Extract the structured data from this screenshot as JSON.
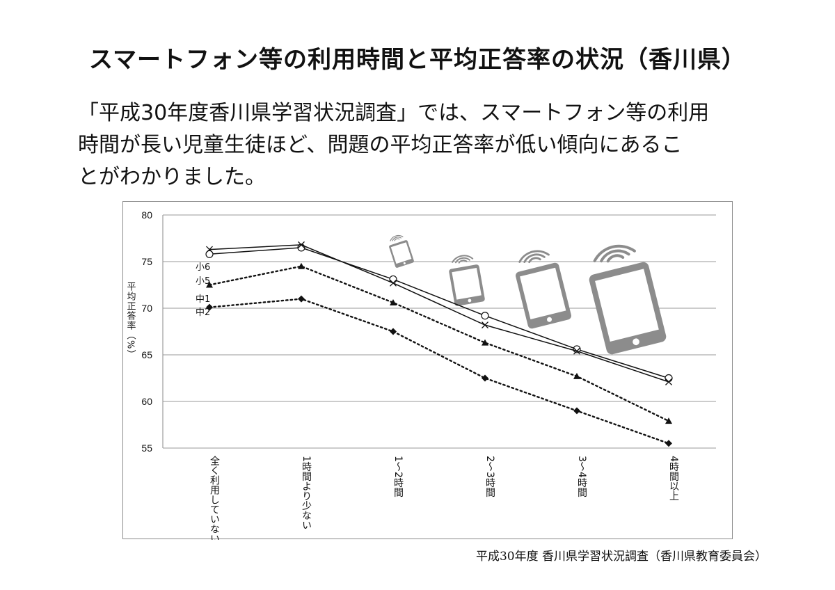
{
  "page": {
    "title": "スマートフォン等の利用時間と平均正答率の状況（香川県）",
    "intro_lines": [
      "「平成30年度香川県学習状況調査」では、スマートフォン等の利用",
      "時間が長い児童生徒ほど、問題の平均正答率が低い傾向にあるこ",
      "とがわかりました。"
    ],
    "source": "平成30年度 香川県学習状況調査（香川県教育委員会）"
  },
  "chart_data": {
    "type": "line",
    "title": "",
    "ylabel": "平均正答率（%）",
    "xlabel": "",
    "ylim": [
      55,
      80
    ],
    "yticks": [
      55,
      60,
      65,
      70,
      75,
      80
    ],
    "grid": true,
    "categories": [
      "全く利用していない",
      "1時間より少ない",
      "1〜2時間",
      "2〜3時間",
      "3〜4時間",
      "4時間以上"
    ],
    "series": [
      {
        "name": "小6",
        "values": [
          75.8,
          76.5,
          73.1,
          69.2,
          65.6,
          62.5
        ],
        "marker": "circle",
        "line": "solid",
        "color": "#111111"
      },
      {
        "name": "小5",
        "values": [
          76.3,
          76.8,
          72.7,
          68.2,
          65.4,
          62.1
        ],
        "marker": "cross",
        "line": "solid",
        "color": "#111111"
      },
      {
        "name": "中1",
        "values": [
          72.5,
          74.5,
          70.6,
          66.3,
          62.7,
          57.9
        ],
        "marker": "triangle",
        "line": "dotted",
        "color": "#111111"
      },
      {
        "name": "中2",
        "values": [
          70.1,
          71.0,
          67.5,
          62.5,
          59.0,
          55.5
        ],
        "marker": "diamond",
        "line": "dotted",
        "color": "#111111"
      }
    ],
    "icon_color": "#8c8c8c",
    "decorations": [
      "tablet-wifi-icon-1",
      "tablet-wifi-icon-2",
      "tablet-wifi-icon-3",
      "tablet-wifi-icon-4"
    ]
  }
}
